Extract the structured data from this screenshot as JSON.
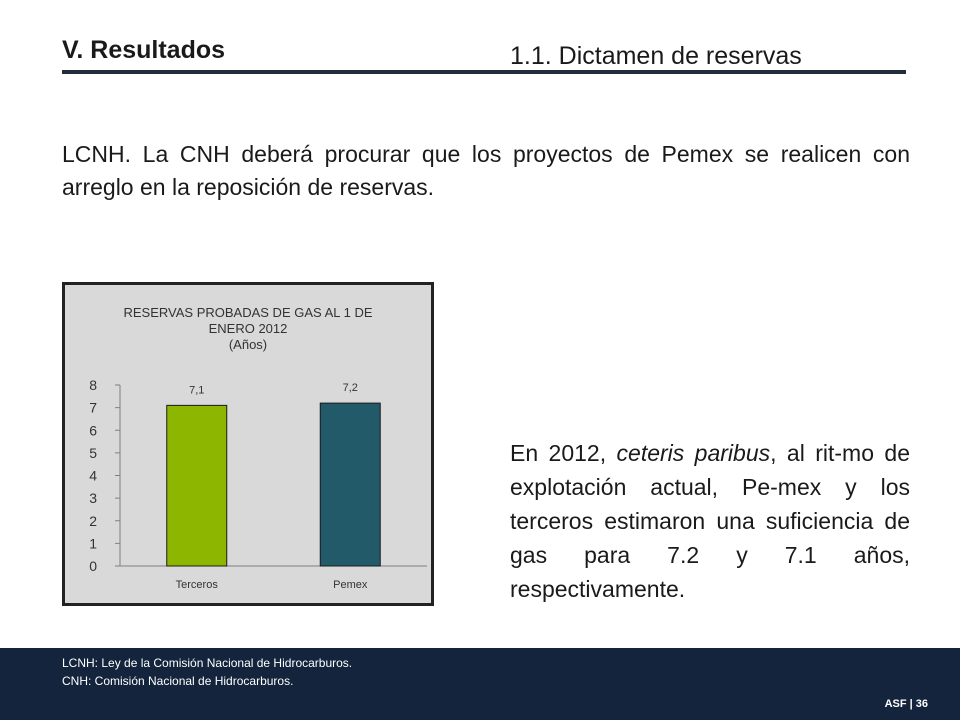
{
  "header": {
    "section_title": "V. Resultados",
    "subsection_title": "1.1. Dictamen de reservas"
  },
  "lead_text": "LCNH. La CNH deberá procurar que los proyectos de Pemex se realicen con arreglo en la reposición de reservas.",
  "body": {
    "part1": "En 2012,",
    "italic": "ceteris paribus",
    "part2": ", al rit-mo de explotación actual, Pe-mex y los terceros estimaron una suficiencia de gas para 7.2 y 7.1 años, respectivamente."
  },
  "chart_data": {
    "type": "bar",
    "title_lines": [
      "RESERVAS PROBADAS DE GAS AL 1 DE",
      "ENERO 2012",
      "(Años)"
    ],
    "categories": [
      "Terceros",
      "Pemex"
    ],
    "values": [
      7.1,
      7.2
    ],
    "data_labels": [
      "7,1",
      "7,2"
    ],
    "colors": [
      "#8cb600",
      "#235a69"
    ],
    "yticks": [
      "0",
      "1",
      "2",
      "3",
      "4",
      "5",
      "6",
      "7",
      "8"
    ],
    "ylim": [
      0,
      8
    ],
    "grid": false
  },
  "footer": {
    "note1": "LCNH: Ley de la Comisión Nacional de Hidrocarburos.",
    "note2": "CNH: Comisión Nacional de Hidrocarburos.",
    "page": "ASF | 36"
  }
}
